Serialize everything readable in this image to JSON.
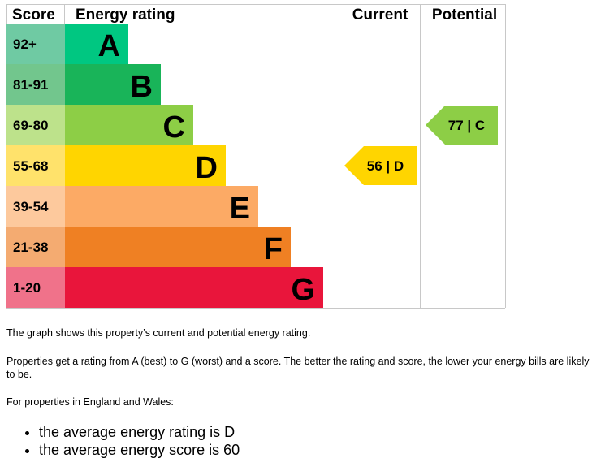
{
  "chart_data": {
    "type": "bar",
    "title": "",
    "headers": {
      "score": "Score",
      "rating": "Energy rating",
      "current": "Current",
      "potential": "Potential"
    },
    "bands": [
      {
        "letter": "A",
        "range": "92+",
        "color": "#00c781",
        "range_color": "#6fcaa3"
      },
      {
        "letter": "B",
        "range": "81-91",
        "color": "#19b459",
        "range_color": "#72c68d"
      },
      {
        "letter": "C",
        "range": "69-80",
        "color": "#8dce46",
        "range_color": "#bde28b"
      },
      {
        "letter": "D",
        "range": "55-68",
        "color": "#ffd500",
        "range_color": "#ffe26b"
      },
      {
        "letter": "E",
        "range": "39-54",
        "color": "#fcaa65",
        "range_color": "#fdc99d"
      },
      {
        "letter": "F",
        "range": "21-38",
        "color": "#ef8023",
        "range_color": "#f4ab71"
      },
      {
        "letter": "G",
        "range": "1-20",
        "color": "#e9153b",
        "range_color": "#f0728a"
      }
    ],
    "current": {
      "score": 56,
      "band": "D",
      "label": "56 | D",
      "color": "#ffd500"
    },
    "potential": {
      "score": 77,
      "band": "C",
      "label": "77 | C",
      "color": "#8dce46"
    }
  },
  "text": {
    "p1": "The graph shows this property’s current and potential energy rating.",
    "p2": "Properties get a rating from A (best) to G (worst) and a score. The better the rating and score, the lower your energy bills are likely to be.",
    "p3": "For properties in England and Wales:",
    "bullets": [
      "the average energy rating is D",
      "the average energy score is 60"
    ]
  }
}
